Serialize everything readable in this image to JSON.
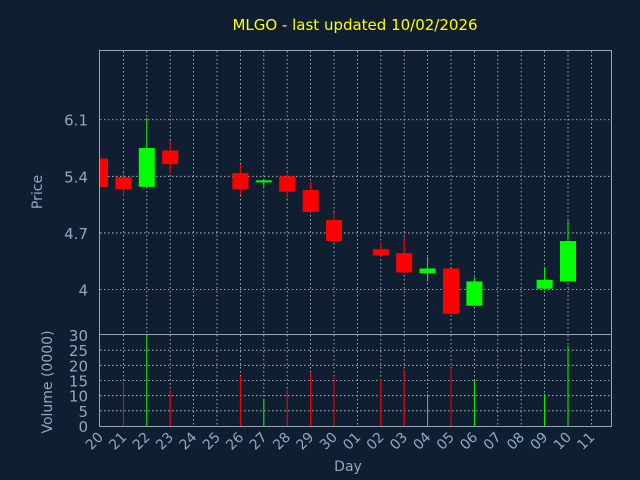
{
  "chart_data": [
    {
      "type": "candlestick",
      "title": "MLGO - last updated 10/02/2026",
      "ylabel": "Price",
      "ylim": [
        3.45,
        6.95
      ],
      "yticks": [
        4,
        4.7,
        5.4,
        6.1
      ],
      "ytick_labels": [
        "4",
        "4.7",
        "5.4",
        "6.1"
      ],
      "grid": true,
      "up_color": "#00ff00",
      "down_color": "#ff0000",
      "ohlc": [
        {
          "day": "20",
          "open": 5.62,
          "high": 5.62,
          "low": 5.27,
          "close": 5.27
        },
        {
          "day": "21",
          "open": 5.39,
          "high": 5.45,
          "low": 5.15,
          "close": 5.24
        },
        {
          "day": "22",
          "open": 5.27,
          "high": 6.12,
          "low": 5.27,
          "close": 5.75
        },
        {
          "day": "23",
          "open": 5.72,
          "high": 5.84,
          "low": 5.45,
          "close": 5.55
        },
        {
          "day": "26",
          "open": 5.44,
          "high": 5.55,
          "low": 5.17,
          "close": 5.24
        },
        {
          "day": "27",
          "open": 5.33,
          "high": 5.37,
          "low": 5.27,
          "close": 5.35
        },
        {
          "day": "28",
          "open": 5.4,
          "high": 5.44,
          "low": 5.13,
          "close": 5.21
        },
        {
          "day": "29",
          "open": 5.23,
          "high": 5.33,
          "low": 4.95,
          "close": 4.96
        },
        {
          "day": "30",
          "open": 4.86,
          "high": 4.95,
          "low": 4.59,
          "close": 4.6
        },
        {
          "day": "02",
          "open": 4.5,
          "high": 4.58,
          "low": 4.43,
          "close": 4.42
        },
        {
          "day": "03",
          "open": 4.45,
          "high": 4.65,
          "low": 4.2,
          "close": 4.21
        },
        {
          "day": "04",
          "open": 4.2,
          "high": 4.4,
          "low": 4.1,
          "close": 4.26
        },
        {
          "day": "05",
          "open": 4.26,
          "high": 4.26,
          "low": 3.7,
          "close": 3.7
        },
        {
          "day": "06",
          "open": 3.8,
          "high": 4.15,
          "low": 3.8,
          "close": 4.1
        },
        {
          "day": "09",
          "open": 4.01,
          "high": 4.28,
          "low": 4.01,
          "close": 4.12
        },
        {
          "day": "10",
          "open": 4.1,
          "high": 4.85,
          "low": 4.1,
          "close": 4.6
        }
      ]
    },
    {
      "type": "bar",
      "ylabel": "Volume (0000)",
      "xlabel": "Day",
      "ylim": [
        0,
        30
      ],
      "yticks": [
        0,
        5,
        10,
        15,
        20,
        25,
        30
      ],
      "categories": [
        "20",
        "21",
        "22",
        "23",
        "24",
        "25",
        "26",
        "27",
        "28",
        "29",
        "30",
        "01",
        "02",
        "03",
        "04",
        "05",
        "06",
        "07",
        "08",
        "09",
        "10",
        "11"
      ],
      "bars": [
        {
          "day": "21",
          "value": 14.5,
          "color": "#ff0000"
        },
        {
          "day": "22",
          "value": 30,
          "color": "#00ff00"
        },
        {
          "day": "23",
          "value": 12,
          "color": "#ff0000"
        },
        {
          "day": "26",
          "value": 16.5,
          "color": "#ff0000"
        },
        {
          "day": "27",
          "value": 9,
          "color": "#00ff00"
        },
        {
          "day": "28",
          "value": 12,
          "color": "#ff0000"
        },
        {
          "day": "29",
          "value": 17.5,
          "color": "#ff0000"
        },
        {
          "day": "30",
          "value": 16.5,
          "color": "#ff0000"
        },
        {
          "day": "02",
          "value": 15.5,
          "color": "#ff0000"
        },
        {
          "day": "03",
          "value": 18.5,
          "color": "#ff0000"
        },
        {
          "day": "04",
          "value": 10.5,
          "color": "#00ff00"
        },
        {
          "day": "05",
          "value": 18.5,
          "color": "#ff0000"
        },
        {
          "day": "06",
          "value": 15,
          "color": "#00ff00"
        },
        {
          "day": "09",
          "value": 10.5,
          "color": "#00ff00"
        },
        {
          "day": "10",
          "value": 26.5,
          "color": "#00ff00"
        }
      ]
    }
  ]
}
